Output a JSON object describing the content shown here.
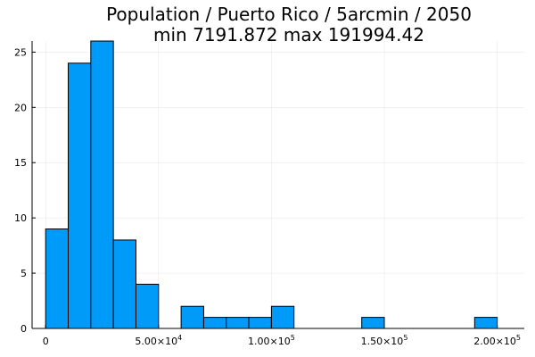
{
  "chart_data": {
    "type": "bar",
    "title": "Population / Puerto Rico / 5arcmin / 2050",
    "subtitle": "min 7191.872  max 191994.42",
    "xlabel": "",
    "ylabel": "",
    "bin_width": 10000,
    "bins": [
      {
        "start": 0,
        "end": 10000,
        "count": 9
      },
      {
        "start": 10000,
        "end": 20000,
        "count": 24
      },
      {
        "start": 20000,
        "end": 30000,
        "count": 26
      },
      {
        "start": 30000,
        "end": 40000,
        "count": 8
      },
      {
        "start": 40000,
        "end": 50000,
        "count": 4
      },
      {
        "start": 60000,
        "end": 70000,
        "count": 2
      },
      {
        "start": 70000,
        "end": 80000,
        "count": 1
      },
      {
        "start": 80000,
        "end": 90000,
        "count": 1
      },
      {
        "start": 90000,
        "end": 100000,
        "count": 1
      },
      {
        "start": 100000,
        "end": 110000,
        "count": 2
      },
      {
        "start": 140000,
        "end": 150000,
        "count": 1
      },
      {
        "start": 190000,
        "end": 200000,
        "count": 1
      }
    ],
    "xlim": [
      -6000,
      212000
    ],
    "ylim": [
      0,
      26
    ],
    "x_ticks": [
      {
        "value": 0,
        "mantissa": "0",
        "exponent": ""
      },
      {
        "value": 50000,
        "mantissa": "5.00×10",
        "exponent": "4"
      },
      {
        "value": 100000,
        "mantissa": "1.00×10",
        "exponent": "5"
      },
      {
        "value": 150000,
        "mantissa": "1.50×10",
        "exponent": "5"
      },
      {
        "value": 200000,
        "mantissa": "2.00×10",
        "exponent": "5"
      }
    ],
    "y_ticks": [
      0,
      5,
      10,
      15,
      20,
      25
    ],
    "grid": true,
    "legend": "none",
    "bar_color": "#009af9",
    "edge_color": "#000000"
  }
}
